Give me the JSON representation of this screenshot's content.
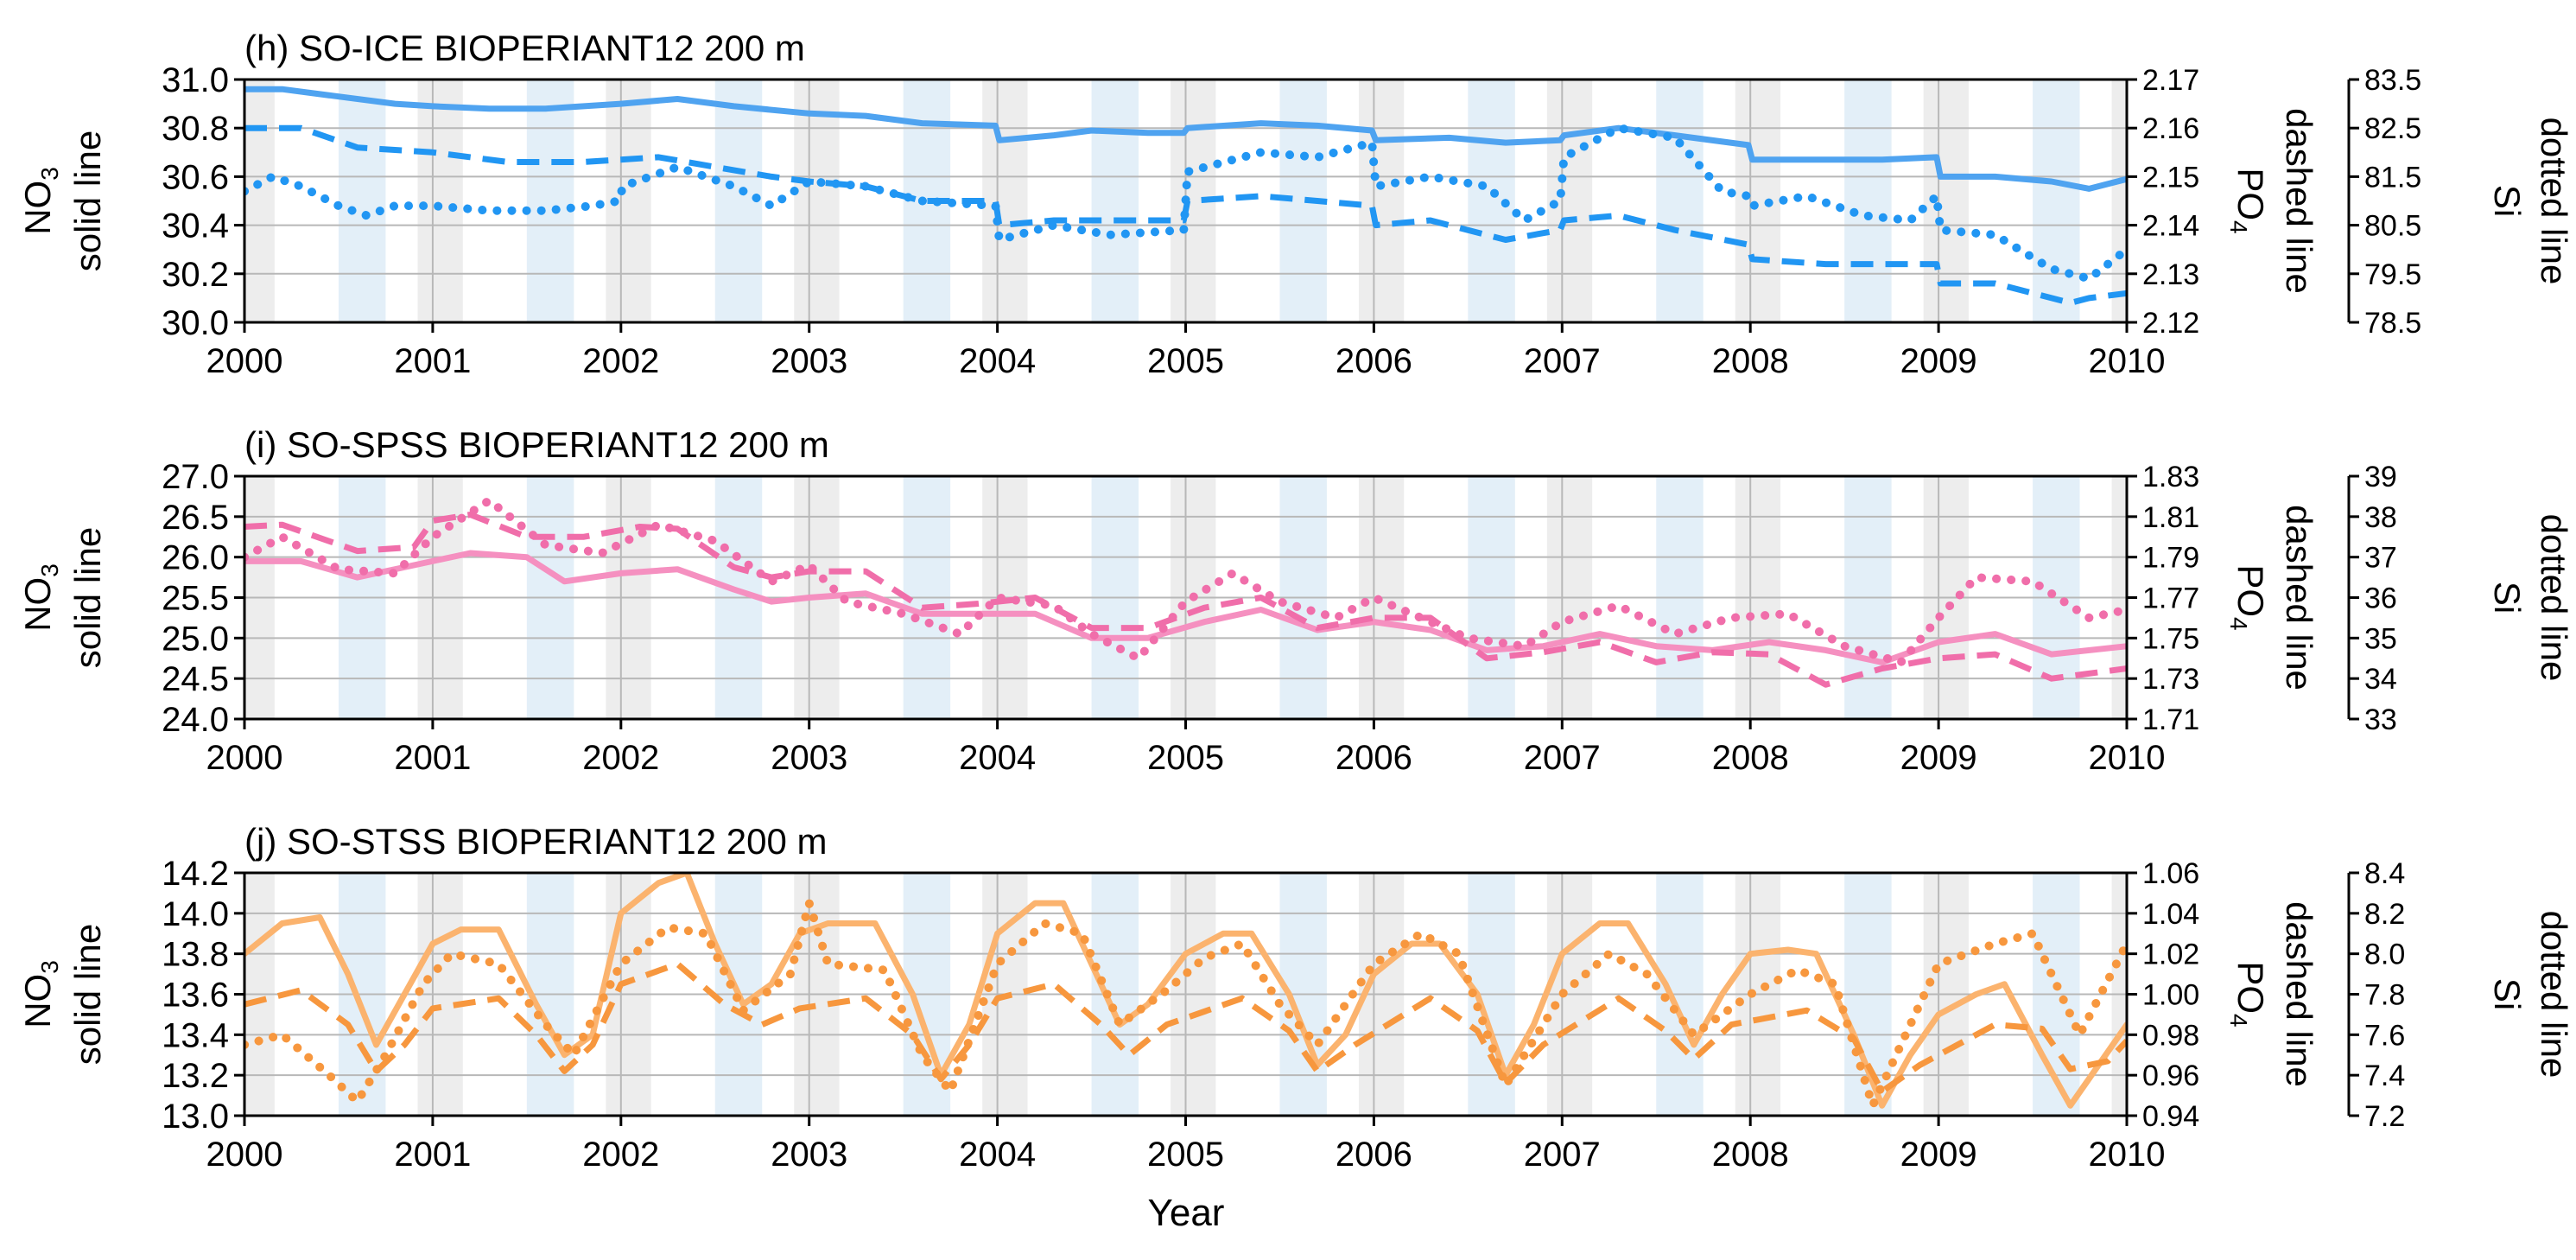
{
  "figure": {
    "xlabel": "Year",
    "ylabel_left": "solid line",
    "ylabel_left_chem": {
      "base": "NO",
      "sub": "3"
    },
    "ylabel_right1": "dashed line",
    "ylabel_right1_chem": {
      "base": "PO",
      "sub": "4"
    },
    "ylabel_right2": "dotted line",
    "ylabel_right2_chem": "Si"
  },
  "chart_data": [
    {
      "type": "line",
      "title": "(h) SO-ICE BIOPERIANT12 200 m",
      "color": "#2196f3",
      "solid_color": "#4fa3f0",
      "xlim": [
        2000,
        2010
      ],
      "x_ticks": [
        "2000",
        "2001",
        "2002",
        "2003",
        "2004",
        "2005",
        "2006",
        "2007",
        "2008",
        "2009",
        "2010"
      ],
      "ylim_left": [
        30.0,
        31.0
      ],
      "ticks_left": [
        "30.0",
        "30.2",
        "30.4",
        "30.6",
        "30.8",
        "31.0"
      ],
      "ylim_right1": [
        2.12,
        2.17
      ],
      "ticks_right1": [
        "2.12",
        "2.13",
        "2.14",
        "2.15",
        "2.16",
        "2.17"
      ],
      "ylim_right2": [
        78.5,
        83.5
      ],
      "ticks_right2": [
        "78.5",
        "79.5",
        "80.5",
        "81.5",
        "82.5",
        "83.5"
      ],
      "grid": true,
      "series": [
        {
          "axis": "left",
          "style": "solid",
          "x": [
            2000.0,
            2000.2,
            2000.5,
            2000.8,
            2001.0,
            2001.3,
            2001.6,
            2002.0,
            2002.3,
            2002.6,
            2003.0,
            2003.3,
            2003.6,
            2003.99,
            2004.01,
            2004.3,
            2004.5,
            2004.8,
            2004.99,
            2005.01,
            2005.4,
            2005.7,
            2005.99,
            2006.01,
            2006.4,
            2006.7,
            2006.99,
            2007.01,
            2007.3,
            2007.6,
            2007.99,
            2008.01,
            2008.4,
            2008.7,
            2008.99,
            2009.01,
            2009.3,
            2009.6,
            2009.8,
            2010.0
          ],
          "y": [
            30.96,
            30.96,
            30.93,
            30.9,
            30.89,
            30.88,
            30.88,
            30.9,
            30.92,
            30.89,
            30.86,
            30.85,
            30.82,
            30.81,
            30.75,
            30.77,
            30.79,
            30.78,
            30.78,
            30.8,
            30.82,
            30.81,
            30.79,
            30.75,
            30.76,
            30.74,
            30.75,
            30.77,
            30.8,
            30.77,
            30.73,
            30.67,
            30.67,
            30.67,
            30.68,
            30.6,
            30.6,
            30.58,
            30.55,
            30.59
          ]
        },
        {
          "axis": "right1",
          "style": "dashed",
          "x": [
            2000.0,
            2000.3,
            2000.6,
            2001.0,
            2001.4,
            2001.8,
            2002.2,
            2002.5,
            2002.8,
            2003.0,
            2003.3,
            2003.6,
            2003.99,
            2004.01,
            2004.3,
            2004.6,
            2004.99,
            2005.01,
            2005.4,
            2005.7,
            2005.99,
            2006.01,
            2006.3,
            2006.7,
            2006.99,
            2007.01,
            2007.3,
            2007.6,
            2007.99,
            2008.01,
            2008.4,
            2008.7,
            2008.99,
            2009.01,
            2009.3,
            2009.7,
            2009.8,
            2010.0
          ],
          "y": [
            2.16,
            2.16,
            2.156,
            2.155,
            2.153,
            2.153,
            2.154,
            2.152,
            2.15,
            2.149,
            2.148,
            2.145,
            2.145,
            2.14,
            2.141,
            2.141,
            2.141,
            2.145,
            2.146,
            2.145,
            2.144,
            2.14,
            2.141,
            2.137,
            2.139,
            2.141,
            2.142,
            2.139,
            2.136,
            2.133,
            2.132,
            2.132,
            2.132,
            2.128,
            2.128,
            2.124,
            2.125,
            2.126
          ]
        },
        {
          "axis": "right2",
          "style": "dotted",
          "x": [
            2000.0,
            2000.15,
            2000.3,
            2000.5,
            2000.65,
            2000.8,
            2001.0,
            2001.3,
            2001.6,
            2001.85,
            2001.99,
            2002.01,
            2002.3,
            2002.6,
            2002.8,
            2003.0,
            2003.3,
            2003.6,
            2003.99,
            2004.01,
            2004.3,
            2004.6,
            2004.99,
            2005.01,
            2005.4,
            2005.7,
            2005.99,
            2006.01,
            2006.3,
            2006.6,
            2006.8,
            2006.99,
            2007.01,
            2007.3,
            2007.6,
            2007.85,
            2007.99,
            2008.01,
            2008.3,
            2008.6,
            2008.85,
            2008.99,
            2009.01,
            2009.3,
            2009.6,
            2009.8,
            2010.0
          ],
          "y": [
            81.2,
            81.5,
            81.3,
            80.9,
            80.7,
            80.9,
            80.9,
            80.8,
            80.8,
            80.9,
            81.0,
            81.3,
            81.7,
            81.3,
            80.9,
            81.4,
            81.3,
            81.0,
            80.9,
            80.2,
            80.5,
            80.3,
            80.4,
            81.6,
            82.0,
            81.9,
            82.2,
            81.3,
            81.5,
            81.3,
            80.6,
            81.0,
            81.9,
            82.5,
            82.3,
            81.2,
            81.1,
            80.9,
            81.1,
            80.7,
            80.6,
            81.1,
            80.4,
            80.3,
            79.6,
            79.4,
            80.0
          ]
        }
      ]
    },
    {
      "type": "line",
      "title": "(i) SO-SPSS BIOPERIANT12 200 m",
      "color": "#f06eaa",
      "solid_color": "#f590c0",
      "xlim": [
        2000,
        2010
      ],
      "x_ticks": [
        "2000",
        "2001",
        "2002",
        "2003",
        "2004",
        "2005",
        "2006",
        "2007",
        "2008",
        "2009",
        "2010"
      ],
      "ylim_left": [
        24.0,
        27.0
      ],
      "ticks_left": [
        "24.0",
        "24.5",
        "25.0",
        "25.5",
        "26.0",
        "26.5",
        "27.0"
      ],
      "ylim_right1": [
        1.71,
        1.83
      ],
      "ticks_right1": [
        "1.71",
        "1.73",
        "1.75",
        "1.77",
        "1.79",
        "1.81",
        "1.83"
      ],
      "ylim_right2": [
        33,
        39
      ],
      "ticks_right2": [
        "33",
        "34",
        "35",
        "36",
        "37",
        "38",
        "39"
      ],
      "grid": true,
      "series": [
        {
          "axis": "left",
          "style": "solid",
          "x": [
            2000.0,
            2000.3,
            2000.6,
            2000.9,
            2001.2,
            2001.5,
            2001.7,
            2002.0,
            2002.3,
            2002.6,
            2002.8,
            2003.0,
            2003.3,
            2003.6,
            2003.9,
            2004.2,
            2004.5,
            2004.8,
            2005.1,
            2005.4,
            2005.7,
            2006.0,
            2006.3,
            2006.6,
            2006.9,
            2007.2,
            2007.5,
            2007.8,
            2008.1,
            2008.4,
            2008.7,
            2009.0,
            2009.3,
            2009.6,
            2010.0
          ],
          "y": [
            25.95,
            25.95,
            25.75,
            25.9,
            26.05,
            26.0,
            25.7,
            25.8,
            25.85,
            25.6,
            25.45,
            25.5,
            25.55,
            25.3,
            25.3,
            25.3,
            25.0,
            25.0,
            25.2,
            25.35,
            25.1,
            25.2,
            25.1,
            24.85,
            24.9,
            25.05,
            24.9,
            24.85,
            24.95,
            24.85,
            24.7,
            24.95,
            25.05,
            24.8,
            24.9
          ]
        },
        {
          "axis": "right1",
          "style": "dashed",
          "x": [
            2000.0,
            2000.2,
            2000.6,
            2000.9,
            2001.0,
            2001.2,
            2001.5,
            2001.8,
            2002.1,
            2002.3,
            2002.6,
            2002.8,
            2003.0,
            2003.3,
            2003.6,
            2003.9,
            2004.2,
            2004.5,
            2004.8,
            2005.1,
            2005.4,
            2005.7,
            2006.0,
            2006.3,
            2006.6,
            2006.9,
            2007.2,
            2007.5,
            2007.8,
            2008.1,
            2008.4,
            2008.7,
            2009.0,
            2009.3,
            2009.6,
            2010.0
          ],
          "y": [
            1.805,
            1.806,
            1.793,
            1.795,
            1.808,
            1.811,
            1.8,
            1.8,
            1.805,
            1.804,
            1.785,
            1.78,
            1.783,
            1.783,
            1.765,
            1.767,
            1.77,
            1.755,
            1.755,
            1.765,
            1.77,
            1.755,
            1.76,
            1.76,
            1.74,
            1.743,
            1.748,
            1.738,
            1.743,
            1.742,
            1.727,
            1.735,
            1.74,
            1.742,
            1.73,
            1.735
          ]
        },
        {
          "axis": "right2",
          "style": "dotted",
          "x": [
            2000.0,
            2000.2,
            2000.5,
            2000.8,
            2001.0,
            2001.3,
            2001.6,
            2001.9,
            2002.2,
            2002.5,
            2002.8,
            2003.0,
            2003.2,
            2003.5,
            2003.8,
            2004.0,
            2004.3,
            2004.5,
            2004.75,
            2005.0,
            2005.25,
            2005.5,
            2005.8,
            2006.0,
            2006.3,
            2006.5,
            2006.8,
            2007.0,
            2007.3,
            2007.6,
            2007.9,
            2008.2,
            2008.5,
            2008.8,
            2009.0,
            2009.2,
            2009.5,
            2009.8,
            2010.0
          ],
          "y": [
            37.0,
            37.5,
            36.7,
            36.6,
            37.5,
            38.4,
            37.3,
            37.1,
            37.8,
            37.4,
            36.4,
            36.8,
            35.9,
            35.6,
            35.1,
            36.0,
            35.8,
            35.1,
            34.5,
            35.9,
            36.6,
            35.9,
            35.5,
            36.0,
            35.4,
            35.0,
            34.8,
            35.4,
            35.8,
            35.1,
            35.5,
            35.6,
            34.8,
            34.4,
            35.5,
            36.5,
            36.4,
            35.5,
            35.7
          ]
        }
      ]
    },
    {
      "type": "line",
      "title": "(j) SO-STSS BIOPERIANT12 200 m",
      "color": "#f7973e",
      "solid_color": "#fbb36e",
      "xlim": [
        2000,
        2010
      ],
      "x_ticks": [
        "2000",
        "2001",
        "2002",
        "2003",
        "2004",
        "2005",
        "2006",
        "2007",
        "2008",
        "2009",
        "2010"
      ],
      "ylim_left": [
        13.0,
        14.2
      ],
      "ticks_left": [
        "13.0",
        "13.2",
        "13.4",
        "13.6",
        "13.8",
        "14.0",
        "14.2"
      ],
      "ylim_right1": [
        0.94,
        1.06
      ],
      "ticks_right1": [
        "0.94",
        "0.96",
        "0.98",
        "1.00",
        "1.02",
        "1.04",
        "1.06"
      ],
      "ylim_right2": [
        7.2,
        8.4
      ],
      "ticks_right2": [
        "7.2",
        "7.4",
        "7.6",
        "7.8",
        "8.0",
        "8.2",
        "8.4"
      ],
      "grid": true,
      "series": [
        {
          "axis": "left",
          "style": "solid",
          "x": [
            2000.0,
            2000.2,
            2000.4,
            2000.55,
            2000.7,
            2000.85,
            2001.0,
            2001.15,
            2001.35,
            2001.55,
            2001.7,
            2001.85,
            2002.0,
            2002.2,
            2002.35,
            2002.5,
            2002.65,
            2002.8,
            2002.95,
            2003.1,
            2003.35,
            2003.55,
            2003.7,
            2003.85,
            2004.0,
            2004.2,
            2004.35,
            2004.5,
            2004.65,
            2004.8,
            2005.0,
            2005.2,
            2005.35,
            2005.55,
            2005.7,
            2005.85,
            2006.0,
            2006.2,
            2006.35,
            2006.55,
            2006.7,
            2006.85,
            2007.0,
            2007.2,
            2007.35,
            2007.55,
            2007.7,
            2007.85,
            2008.0,
            2008.2,
            2008.35,
            2008.55,
            2008.7,
            2008.85,
            2009.0,
            2009.2,
            2009.35,
            2009.55,
            2009.7,
            2009.85,
            2010.0
          ],
          "y": [
            13.8,
            13.95,
            13.98,
            13.7,
            13.35,
            13.6,
            13.85,
            13.92,
            13.92,
            13.55,
            13.3,
            13.4,
            14.0,
            14.15,
            14.2,
            13.85,
            13.55,
            13.65,
            13.9,
            13.95,
            13.95,
            13.6,
            13.2,
            13.45,
            13.9,
            14.05,
            14.05,
            13.75,
            13.45,
            13.55,
            13.8,
            13.9,
            13.9,
            13.6,
            13.25,
            13.4,
            13.7,
            13.85,
            13.85,
            13.6,
            13.2,
            13.45,
            13.8,
            13.95,
            13.95,
            13.65,
            13.35,
            13.6,
            13.8,
            13.82,
            13.8,
            13.4,
            13.05,
            13.3,
            13.5,
            13.6,
            13.65,
            13.3,
            13.05,
            13.25,
            13.45
          ]
        },
        {
          "axis": "right1",
          "style": "dashed",
          "x": [
            2000.0,
            2000.3,
            2000.55,
            2000.7,
            2000.85,
            2001.0,
            2001.35,
            2001.55,
            2001.7,
            2001.85,
            2002.0,
            2002.3,
            2002.55,
            2002.75,
            2002.95,
            2003.3,
            2003.55,
            2003.7,
            2003.85,
            2004.0,
            2004.3,
            2004.55,
            2004.7,
            2004.9,
            2005.3,
            2005.55,
            2005.7,
            2005.9,
            2006.3,
            2006.55,
            2006.7,
            2006.9,
            2007.3,
            2007.55,
            2007.7,
            2007.9,
            2008.3,
            2008.55,
            2008.7,
            2008.9,
            2009.3,
            2009.55,
            2009.7,
            2009.9,
            2010.0
          ],
          "y": [
            0.995,
            1.002,
            0.985,
            0.962,
            0.975,
            0.993,
            0.998,
            0.98,
            0.962,
            0.975,
            1.005,
            1.015,
            0.995,
            0.985,
            0.993,
            0.998,
            0.98,
            0.958,
            0.975,
            0.998,
            1.005,
            0.985,
            0.97,
            0.985,
            0.998,
            0.982,
            0.962,
            0.975,
            0.998,
            0.982,
            0.956,
            0.975,
            0.998,
            0.982,
            0.968,
            0.985,
            0.992,
            0.978,
            0.952,
            0.965,
            0.985,
            0.983,
            0.963,
            0.967,
            0.977
          ]
        },
        {
          "axis": "right2",
          "style": "dotted",
          "x": [
            2000.0,
            2000.2,
            2000.45,
            2000.6,
            2000.75,
            2000.95,
            2001.1,
            2001.35,
            2001.6,
            2001.75,
            2002.0,
            2002.25,
            2002.45,
            2002.65,
            2002.9,
            2003.0,
            2003.1,
            2003.4,
            2003.6,
            2003.75,
            2004.0,
            2004.25,
            2004.45,
            2004.65,
            2004.9,
            2005.1,
            2005.3,
            2005.5,
            2005.7,
            2006.0,
            2006.25,
            2006.45,
            2006.7,
            2007.0,
            2007.25,
            2007.45,
            2007.7,
            2008.0,
            2008.25,
            2008.45,
            2008.65,
            2009.0,
            2009.3,
            2009.5,
            2009.75,
            2010.0
          ],
          "y": [
            7.55,
            7.6,
            7.4,
            7.27,
            7.5,
            7.85,
            8.0,
            7.95,
            7.65,
            7.5,
            7.95,
            8.13,
            8.1,
            7.72,
            7.9,
            8.25,
            7.95,
            7.92,
            7.5,
            7.32,
            7.95,
            8.15,
            8.1,
            7.65,
            7.82,
            7.98,
            8.05,
            7.75,
            7.55,
            7.95,
            8.1,
            8.0,
            7.35,
            7.8,
            8.0,
            7.9,
            7.6,
            7.8,
            7.92,
            7.85,
            7.25,
            7.95,
            8.05,
            8.1,
            7.6,
            8.05
          ]
        }
      ]
    }
  ]
}
